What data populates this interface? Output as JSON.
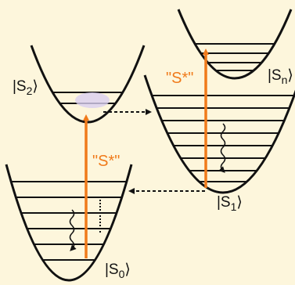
{
  "states": [
    {
      "prefix": "|S",
      "subscript": "2",
      "suffix": "⟩"
    },
    {
      "prefix": "|S",
      "subscript": "n",
      "suffix": "⟩"
    },
    {
      "prefix": "|S",
      "subscript": "1",
      "suffix": "⟩"
    },
    {
      "prefix": "|S",
      "subscript": "0",
      "suffix": "⟩"
    }
  ],
  "excitation_labels": [
    "\"S*\"",
    "\"S*\""
  ]
}
